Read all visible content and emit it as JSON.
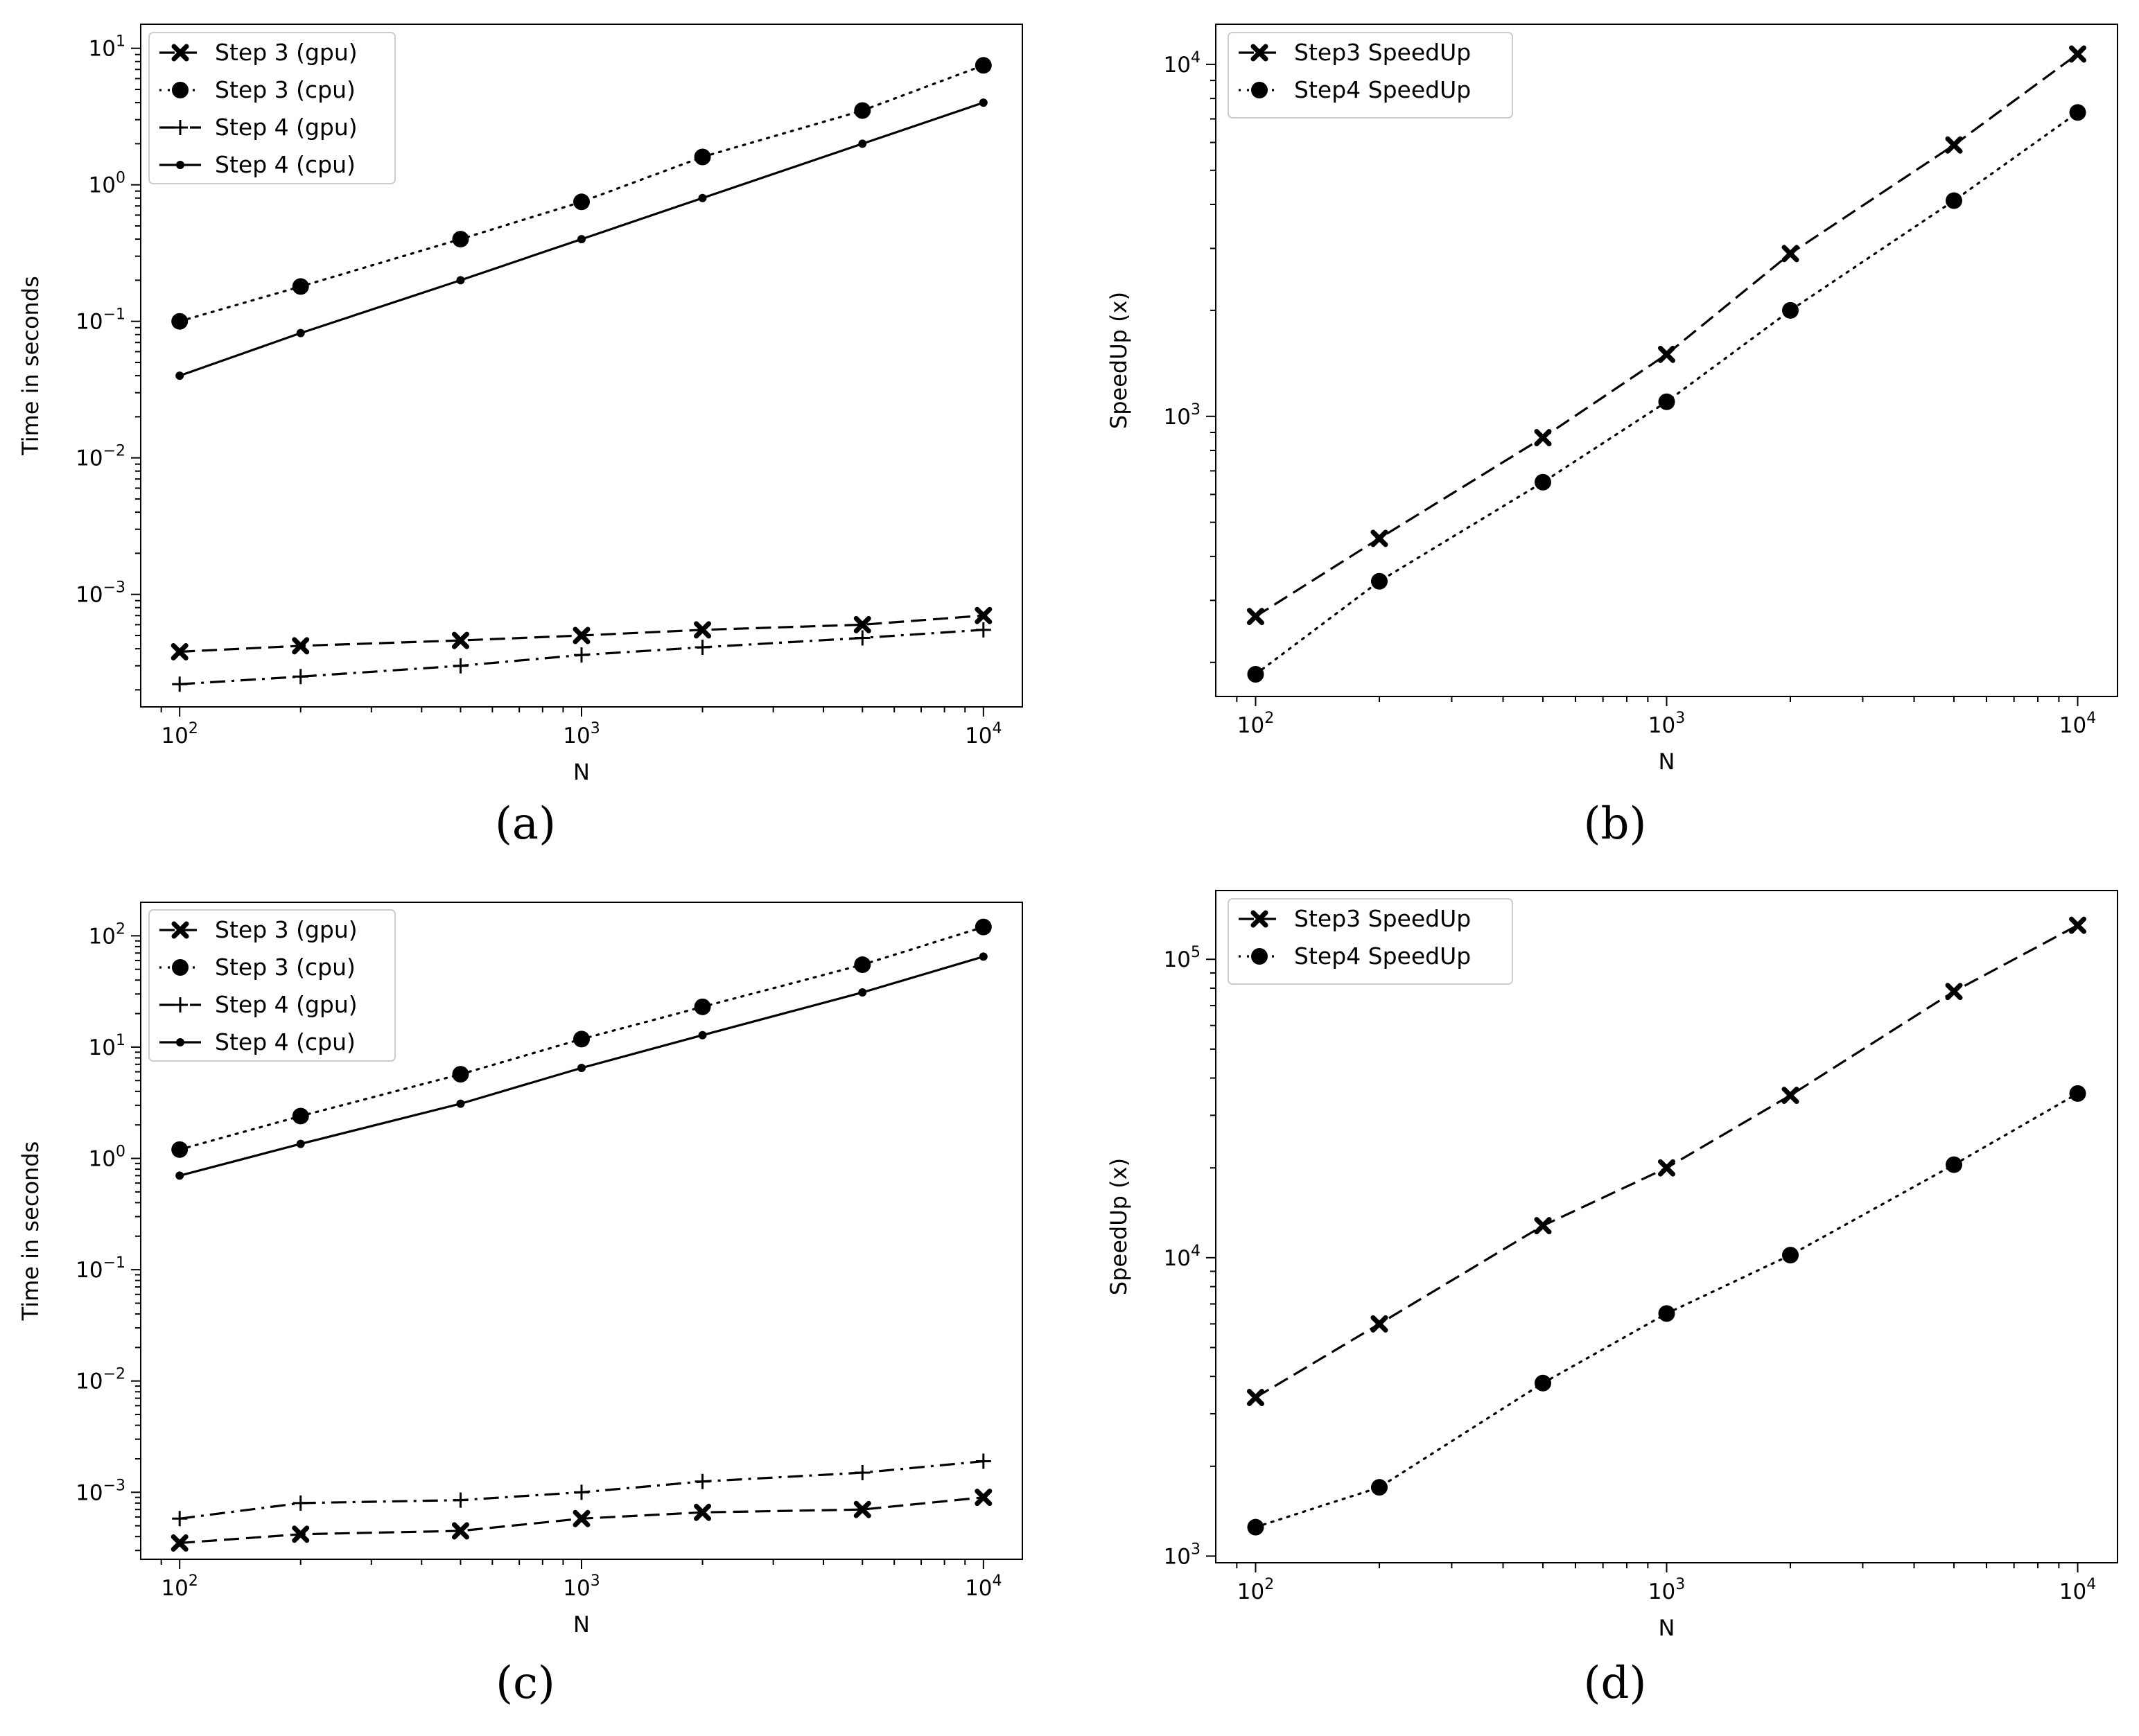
{
  "chart_data": [
    {
      "type": "line",
      "panel": "a",
      "caption": "(a)",
      "title": "",
      "xlabel": "N",
      "ylabel": "Time in seconds",
      "xscale": "log",
      "yscale": "log",
      "xlim": [
        80,
        12500
      ],
      "ylim": [
        0.00015,
        15
      ],
      "x": [
        100,
        200,
        500,
        1000,
        2000,
        5000,
        10000
      ],
      "xticks": [
        {
          "base": "10",
          "exp": "2",
          "value": 100
        },
        {
          "base": "10",
          "exp": "3",
          "value": 1000
        },
        {
          "base": "10",
          "exp": "4",
          "value": 10000
        }
      ],
      "yticks": [
        {
          "base": "10",
          "exp": "−3",
          "value": 0.001
        },
        {
          "base": "10",
          "exp": "−2",
          "value": 0.01
        },
        {
          "base": "10",
          "exp": "−1",
          "value": 0.1
        },
        {
          "base": "10",
          "exp": "0",
          "value": 1
        },
        {
          "base": "10",
          "exp": "1",
          "value": 10
        }
      ],
      "legend_position": "top-left",
      "grid": false,
      "series": [
        {
          "name": "Step 3 (gpu)",
          "linestyle": "dashed",
          "marker": "x",
          "values": [
            0.00038,
            0.00042,
            0.00046,
            0.0005,
            0.00055,
            0.0006,
            0.0007
          ]
        },
        {
          "name": "Step 3 (cpu)",
          "linestyle": "dotted",
          "marker": "circle",
          "values": [
            0.1,
            0.18,
            0.4,
            0.75,
            1.6,
            3.5,
            7.5
          ]
        },
        {
          "name": "Step 4 (gpu)",
          "linestyle": "dashdot",
          "marker": "plus",
          "values": [
            0.00022,
            0.00025,
            0.0003,
            0.00036,
            0.00041,
            0.00048,
            0.00055
          ]
        },
        {
          "name": "Step 4 (cpu)",
          "linestyle": "solid",
          "marker": "dot",
          "values": [
            0.04,
            0.082,
            0.2,
            0.4,
            0.8,
            2.0,
            4.0
          ]
        }
      ]
    },
    {
      "type": "line",
      "panel": "b",
      "caption": "(b)",
      "title": "",
      "xlabel": "N",
      "ylabel": "SpeedUp (x)",
      "xscale": "log",
      "yscale": "log",
      "xlim": [
        80,
        12500
      ],
      "ylim": [
        160,
        13000
      ],
      "x": [
        100,
        200,
        500,
        1000,
        2000,
        5000,
        10000
      ],
      "xticks": [
        {
          "base": "10",
          "exp": "2",
          "value": 100
        },
        {
          "base": "10",
          "exp": "3",
          "value": 1000
        },
        {
          "base": "10",
          "exp": "4",
          "value": 10000
        }
      ],
      "yticks": [
        {
          "base": "10",
          "exp": "3",
          "value": 1000
        },
        {
          "base": "10",
          "exp": "4",
          "value": 10000
        }
      ],
      "legend_position": "top-left",
      "grid": false,
      "series": [
        {
          "name": "Step3 SpeedUp",
          "linestyle": "dashed",
          "marker": "x",
          "values": [
            270,
            450,
            870,
            1500,
            2900,
            5900,
            10700
          ]
        },
        {
          "name": "Step4 SpeedUp",
          "linestyle": "dotted",
          "marker": "circle",
          "values": [
            185,
            340,
            650,
            1100,
            2000,
            4100,
            7300
          ]
        }
      ]
    },
    {
      "type": "line",
      "panel": "c",
      "caption": "(c)",
      "title": "",
      "xlabel": "N",
      "ylabel": "Time in seconds",
      "xscale": "log",
      "yscale": "log",
      "xlim": [
        80,
        12500
      ],
      "ylim": [
        0.00025,
        200
      ],
      "x": [
        100,
        200,
        500,
        1000,
        2000,
        5000,
        10000
      ],
      "xticks": [
        {
          "base": "10",
          "exp": "2",
          "value": 100
        },
        {
          "base": "10",
          "exp": "3",
          "value": 1000
        },
        {
          "base": "10",
          "exp": "4",
          "value": 10000
        }
      ],
      "yticks": [
        {
          "base": "10",
          "exp": "−3",
          "value": 0.001
        },
        {
          "base": "10",
          "exp": "−2",
          "value": 0.01
        },
        {
          "base": "10",
          "exp": "−1",
          "value": 0.1
        },
        {
          "base": "10",
          "exp": "0",
          "value": 1
        },
        {
          "base": "10",
          "exp": "1",
          "value": 10
        },
        {
          "base": "10",
          "exp": "2",
          "value": 100
        }
      ],
      "legend_position": "top-left",
      "grid": false,
      "series": [
        {
          "name": "Step 3 (gpu)",
          "linestyle": "dashed",
          "marker": "x",
          "values": [
            0.00035,
            0.00042,
            0.00045,
            0.00058,
            0.00066,
            0.0007,
            0.0009
          ]
        },
        {
          "name": "Step 3 (cpu)",
          "linestyle": "dotted",
          "marker": "circle",
          "values": [
            1.2,
            2.4,
            5.7,
            11.8,
            23,
            55,
            120
          ]
        },
        {
          "name": "Step 4 (gpu)",
          "linestyle": "dashdot",
          "marker": "plus",
          "values": [
            0.00058,
            0.0008,
            0.00085,
            0.001,
            0.00125,
            0.0015,
            0.0019
          ]
        },
        {
          "name": "Step 4 (cpu)",
          "linestyle": "solid",
          "marker": "dot",
          "values": [
            0.7,
            1.35,
            3.1,
            6.5,
            12.8,
            31,
            65
          ]
        }
      ]
    },
    {
      "type": "line",
      "panel": "d",
      "caption": "(d)",
      "title": "",
      "xlabel": "N",
      "ylabel": "SpeedUp (x)",
      "xscale": "log",
      "yscale": "log",
      "xlim": [
        80,
        12500
      ],
      "ylim": [
        950,
        170000
      ],
      "x": [
        100,
        200,
        500,
        1000,
        2000,
        5000,
        10000
      ],
      "xticks": [
        {
          "base": "10",
          "exp": "2",
          "value": 100
        },
        {
          "base": "10",
          "exp": "3",
          "value": 1000
        },
        {
          "base": "10",
          "exp": "4",
          "value": 10000
        }
      ],
      "yticks": [
        {
          "base": "10",
          "exp": "3",
          "value": 1000
        },
        {
          "base": "10",
          "exp": "4",
          "value": 10000
        },
        {
          "base": "10",
          "exp": "5",
          "value": 100000
        }
      ],
      "legend_position": "top-left",
      "grid": false,
      "series": [
        {
          "name": "Step3 SpeedUp",
          "linestyle": "dashed",
          "marker": "x",
          "values": [
            3400,
            6000,
            12800,
            20000,
            35000,
            78000,
            130000
          ]
        },
        {
          "name": "Step4 SpeedUp",
          "linestyle": "dotted",
          "marker": "circle",
          "values": [
            1250,
            1700,
            3800,
            6500,
            10200,
            20500,
            35500
          ]
        }
      ]
    }
  ]
}
